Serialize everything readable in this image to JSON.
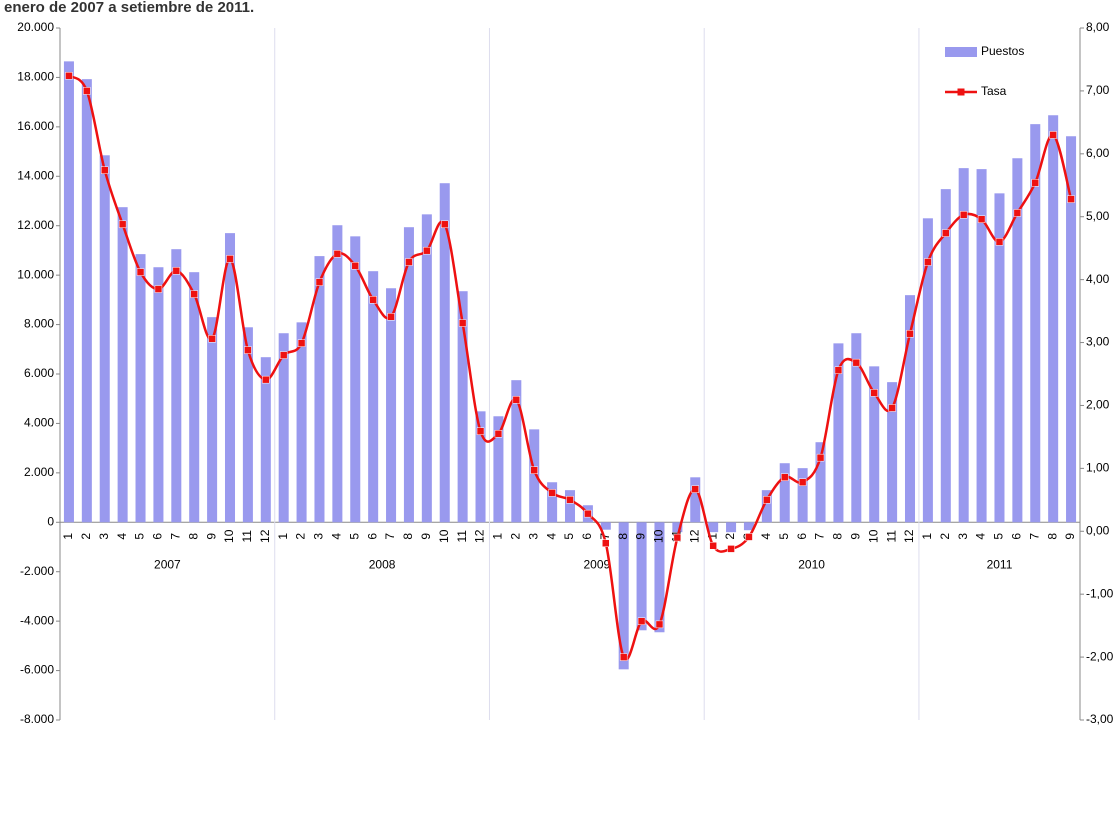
{
  "chart_data": {
    "type": "bar-line",
    "title": "enero de 2007 a setiembre de 2011.",
    "categories": [
      "1",
      "2",
      "3",
      "4",
      "5",
      "6",
      "7",
      "8",
      "9",
      "10",
      "11",
      "12",
      "1",
      "2",
      "3",
      "4",
      "5",
      "6",
      "7",
      "8",
      "9",
      "10",
      "11",
      "12",
      "1",
      "2",
      "3",
      "4",
      "5",
      "6",
      "7",
      "8",
      "9",
      "10",
      "11",
      "12",
      "1",
      "2",
      "3",
      "4",
      "5",
      "6",
      "7",
      "8",
      "9",
      "10",
      "11",
      "12",
      "1",
      "2",
      "3",
      "4",
      "5",
      "6",
      "7",
      "8",
      "9"
    ],
    "years": [
      "2007",
      "2008",
      "2009",
      "2010",
      "2011"
    ],
    "series": [
      {
        "name": "Puestos",
        "color": "#9999ee",
        "values": [
          18650,
          17930,
          14850,
          12750,
          10850,
          10320,
          11050,
          10120,
          8300,
          11700,
          7890,
          6680,
          7650,
          8090,
          10770,
          12020,
          11570,
          10160,
          9470,
          11940,
          12460,
          13720,
          9350,
          4490,
          4290,
          5750,
          3760,
          1620,
          1300,
          690,
          -300,
          -5950,
          -4370,
          -4450,
          -400,
          1820,
          -400,
          -400,
          -320,
          1300,
          2390,
          2190,
          3240,
          7240,
          7650,
          6310,
          5670,
          9190,
          12300,
          13480,
          14330,
          14290,
          13310,
          14730,
          16110,
          16470,
          15620
        ]
      },
      {
        "name": "Tasa",
        "color": "#ee1111",
        "axis": "y2",
        "values": [
          7.24,
          7.0,
          5.74,
          4.88,
          4.12,
          3.85,
          4.14,
          3.77,
          3.06,
          4.33,
          2.88,
          2.41,
          2.8,
          2.99,
          3.96,
          4.41,
          4.22,
          3.68,
          3.41,
          4.28,
          4.46,
          4.88,
          3.31,
          1.59,
          1.55,
          2.09,
          0.97,
          0.61,
          0.5,
          0.28,
          -0.19,
          -2.0,
          -1.43,
          -1.48,
          -0.1,
          0.67,
          -0.23,
          -0.28,
          -0.09,
          0.5,
          0.86,
          0.78,
          1.17,
          2.56,
          2.68,
          2.2,
          1.96,
          3.14,
          4.28,
          4.74,
          5.03,
          4.96,
          4.6,
          5.06,
          5.54,
          6.3,
          5.28
        ]
      }
    ],
    "ylim": [
      -8000,
      20000
    ],
    "yticks": [
      {
        "value": -8000,
        "label": "-8.000"
      },
      {
        "value": -6000,
        "label": "-6.000"
      },
      {
        "value": -4000,
        "label": "-4.000"
      },
      {
        "value": -2000,
        "label": "-2.000"
      },
      0,
      {
        "value": 2000,
        "label": "2.000"
      },
      {
        "value": 4000,
        "label": "4.000"
      },
      {
        "value": 6000,
        "label": "6.000"
      },
      {
        "value": 8000,
        "label": "8.000"
      },
      {
        "value": 10000,
        "label": "10.000"
      },
      {
        "value": 12000,
        "label": "12.000"
      },
      {
        "value": 14000,
        "label": "14.000"
      },
      {
        "value": 16000,
        "label": "16.000"
      },
      {
        "value": 18000,
        "label": "18.000"
      },
      {
        "value": 20000,
        "label": "20.000"
      }
    ],
    "y2lim": [
      -3,
      8
    ],
    "y2ticks": [
      {
        "value": -3,
        "label": "-3,00"
      },
      {
        "value": -2,
        "label": "-2,00"
      },
      {
        "value": -1,
        "label": "-1,00"
      },
      {
        "value": 0,
        "label": "0,00"
      },
      {
        "value": 1,
        "label": "1,00"
      },
      {
        "value": 2,
        "label": "2,00"
      },
      {
        "value": 3,
        "label": "3,00"
      },
      {
        "value": 4,
        "label": "4,00"
      },
      {
        "value": 5,
        "label": "5,00"
      },
      {
        "value": 6,
        "label": "6,00"
      },
      {
        "value": 7,
        "label": "7,00"
      },
      {
        "value": 8,
        "label": "8,00"
      }
    ],
    "legend": "top-right"
  }
}
